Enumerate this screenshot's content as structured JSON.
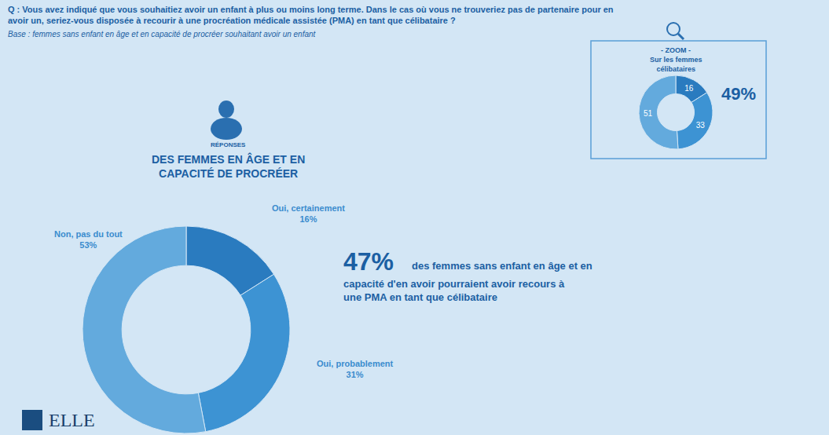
{
  "chart_data": [
    {
      "type": "pie",
      "title": "Q : Vous avez indiqué que vous souhaitiez avoir un enfant à plus ou moins long terme. Dans le cas où vous ne trouveriez pas de partenaire pour en avoir un, seriez-vous disposée à recourir à une procréation médicale assistée (PMA) en tant que célibataire ?",
      "subtitle": "Base : femmes sans enfant en âge et en capacité de procréer souhaitant avoir un enfant",
      "annotations": [
        "RÉPONSES",
        "DES FEMMES EN ÂGE ET EN CAPACITÉ DE PROCRÉER",
        "47%",
        "des femmes sans enfant en âge et en capacité d'en avoir pourraient avoir recours à une PMA en tant que célibataire",
        "ELLE"
      ],
      "categories": [
        "Oui, certainement",
        "Oui, probablement",
        "Non, pas du tout"
      ],
      "values": [
        16,
        31,
        53
      ],
      "value_labels": [
        "16%",
        "31%",
        "53%"
      ],
      "colors": [
        "#2a7bbf",
        "#3d93d3",
        "#63aadd"
      ],
      "data_labels": true
    },
    {
      "type": "pie",
      "title": "- ZOOM -",
      "subtitle": "Sur les femmes célibataires",
      "annotations": [
        "49%"
      ],
      "values": [
        16,
        33,
        51
      ],
      "colors": [
        "#2a7bbf",
        "#3d93d3",
        "#63aadd"
      ],
      "data_labels": true
    }
  ]
}
